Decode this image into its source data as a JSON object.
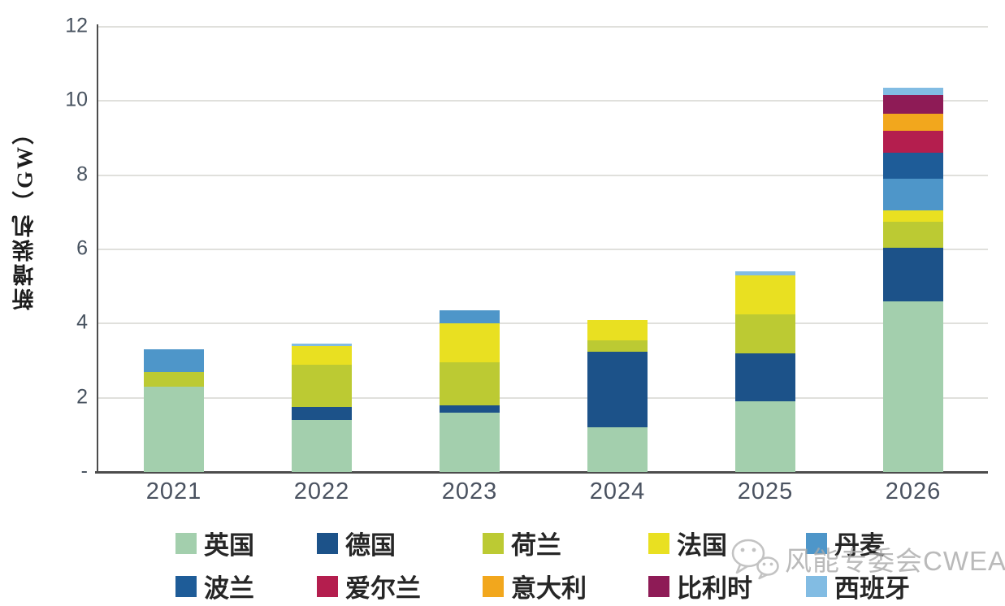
{
  "chart_data": {
    "type": "bar",
    "stacked": true,
    "title": "",
    "ylabel": "新增装机（GW）",
    "xlabel": "",
    "ylim": [
      0,
      12
    ],
    "grid": true,
    "legend_position": "bottom",
    "categories": [
      "2021",
      "2022",
      "2023",
      "2024",
      "2025",
      "2026"
    ],
    "yticks": [
      {
        "value": 0,
        "label": "-"
      },
      {
        "value": 2,
        "label": "2"
      },
      {
        "value": 4,
        "label": "4"
      },
      {
        "value": 6,
        "label": "6"
      },
      {
        "value": 8,
        "label": "8"
      },
      {
        "value": 10,
        "label": "10"
      },
      {
        "value": 12,
        "label": "12"
      }
    ],
    "series": [
      {
        "name": "英国",
        "color": "#a3cfad",
        "values": [
          2.3,
          1.4,
          1.6,
          1.2,
          1.9,
          4.6
        ]
      },
      {
        "name": "德国",
        "color": "#1c5289",
        "values": [
          0,
          0.35,
          0.2,
          2.05,
          1.3,
          1.45
        ]
      },
      {
        "name": "荷兰",
        "color": "#bcca33",
        "values": [
          0.4,
          1.15,
          1.15,
          0.3,
          1.05,
          0.7
        ]
      },
      {
        "name": "法国",
        "color": "#e9e021",
        "values": [
          0,
          0.5,
          1.05,
          0.55,
          1.05,
          0.3
        ]
      },
      {
        "name": "丹麦",
        "color": "#4e96c9",
        "values": [
          0.6,
          0,
          0.35,
          0,
          0,
          0.85
        ]
      },
      {
        "name": "波兰",
        "color": "#1e5c98",
        "values": [
          0,
          0,
          0,
          0,
          0,
          0.7
        ]
      },
      {
        "name": "爱尔兰",
        "color": "#b41e4e",
        "values": [
          0,
          0,
          0,
          0,
          0,
          0.6
        ]
      },
      {
        "name": "意大利",
        "color": "#f2a71d",
        "values": [
          0,
          0,
          0,
          0,
          0,
          0.45
        ]
      },
      {
        "name": "比利时",
        "color": "#8e1b56",
        "values": [
          0,
          0,
          0,
          0,
          0,
          0.5
        ]
      },
      {
        "name": "西班牙",
        "color": "#82bce3",
        "values": [
          0,
          0.05,
          0,
          0,
          0.1,
          0.2
        ]
      }
    ],
    "totals": [
      3.3,
      3.45,
      4.35,
      4.1,
      5.4,
      10.35
    ]
  },
  "watermark": {
    "icon": "wechat-icon",
    "text": "风能专委会CWEA"
  }
}
